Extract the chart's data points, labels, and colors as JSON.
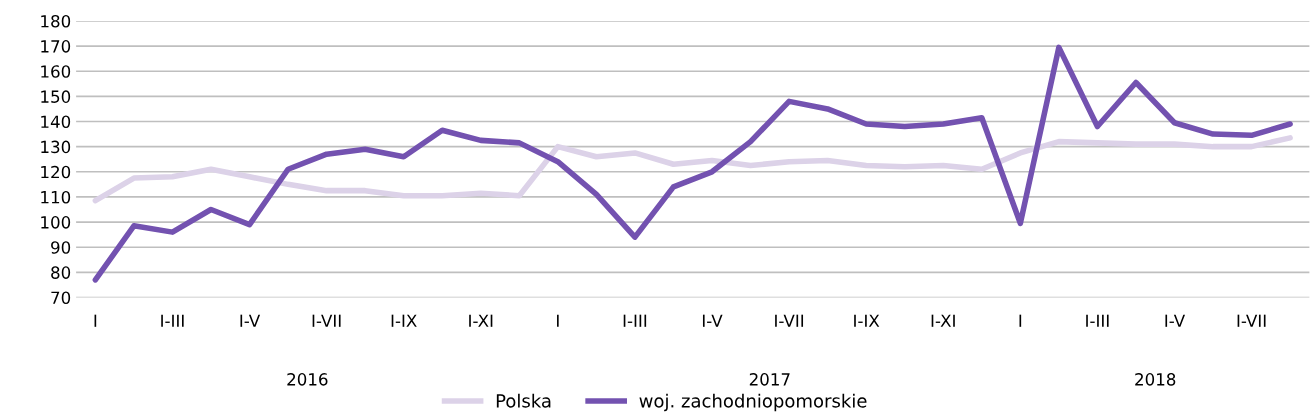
{
  "chart_data": {
    "type": "line",
    "categories": [
      "I",
      null,
      "I-III",
      null,
      "I-V",
      null,
      "I-VII",
      null,
      "I-IX",
      null,
      "I-XI",
      null,
      "I",
      null,
      "I-III",
      null,
      "I-V",
      null,
      "I-VII",
      null,
      "I-IX",
      null,
      "I-XI",
      null,
      "I",
      null,
      "I-III",
      null,
      "I-V",
      null,
      "I-VII",
      null
    ],
    "series": [
      {
        "name": "Polska",
        "color": "#dcd2e8",
        "values": [
          108.5,
          117.5,
          118,
          121,
          118,
          115,
          112.5,
          112.5,
          110.5,
          110.5,
          111.5,
          110.5,
          130,
          126,
          127.5,
          123,
          124.5,
          122.5,
          124,
          124.5,
          122.5,
          122,
          122.5,
          121,
          127.5,
          132,
          131.5,
          131,
          131,
          130,
          130,
          133.5
        ]
      },
      {
        "name": "woj. zachodniopomorskie",
        "color": "#7352b0",
        "values": [
          77,
          98.5,
          96,
          105,
          99,
          121,
          127,
          129,
          126,
          136.5,
          132.5,
          131.5,
          124,
          111,
          94,
          114,
          120,
          132,
          148,
          145,
          139,
          138,
          139,
          141.5,
          99.5,
          169.5,
          138,
          155.5,
          139.5,
          135,
          134.5,
          139
        ]
      }
    ],
    "annotations": [
      "2016",
      "2017",
      "2018"
    ],
    "ylim": [
      70,
      180
    ],
    "yticks": [
      70,
      80,
      90,
      100,
      110,
      120,
      130,
      140,
      150,
      160,
      170,
      180
    ],
    "grid": "y",
    "legend": "bottom",
    "marker": "none",
    "line_style": "solid"
  }
}
